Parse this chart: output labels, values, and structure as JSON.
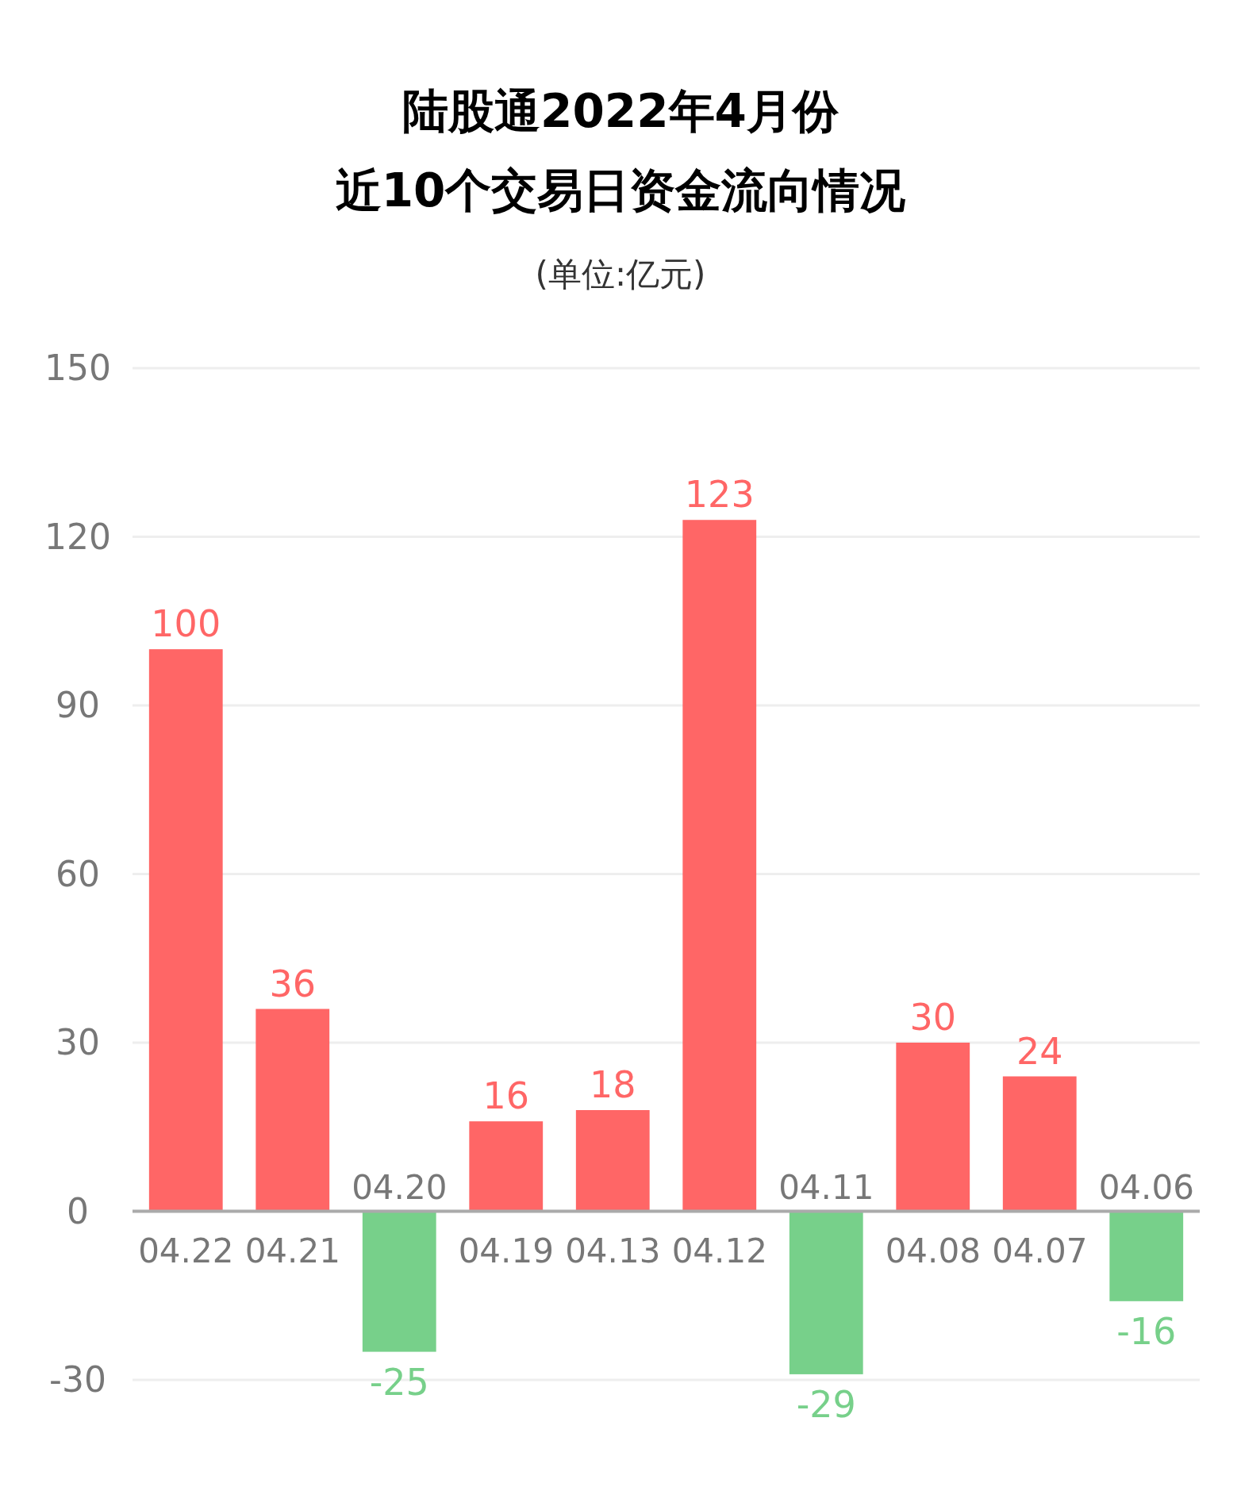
{
  "chart_data": {
    "type": "bar",
    "title": "陆股通2022年4月份",
    "subtitle": "近10个交易日资金流向情况",
    "annotations": [
      "(单位:亿元)"
    ],
    "categories": [
      "04.22",
      "04.21",
      "04.20",
      "04.19",
      "04.13",
      "04.12",
      "04.11",
      "04.08",
      "04.07",
      "04.06"
    ],
    "values": [
      100,
      36,
      -25,
      16,
      18,
      123,
      -29,
      30,
      24,
      -16
    ],
    "colors": [
      "#ff6666",
      "#ff6666",
      "#77d08a",
      "#ff6666",
      "#ff6666",
      "#ff6666",
      "#77d08a",
      "#ff6666",
      "#ff6666",
      "#77d08a"
    ],
    "ylim": [
      -30,
      150
    ],
    "yticks": [
      -30,
      0,
      30,
      60,
      90,
      120,
      150
    ],
    "grid": "y",
    "data_labels": true
  }
}
